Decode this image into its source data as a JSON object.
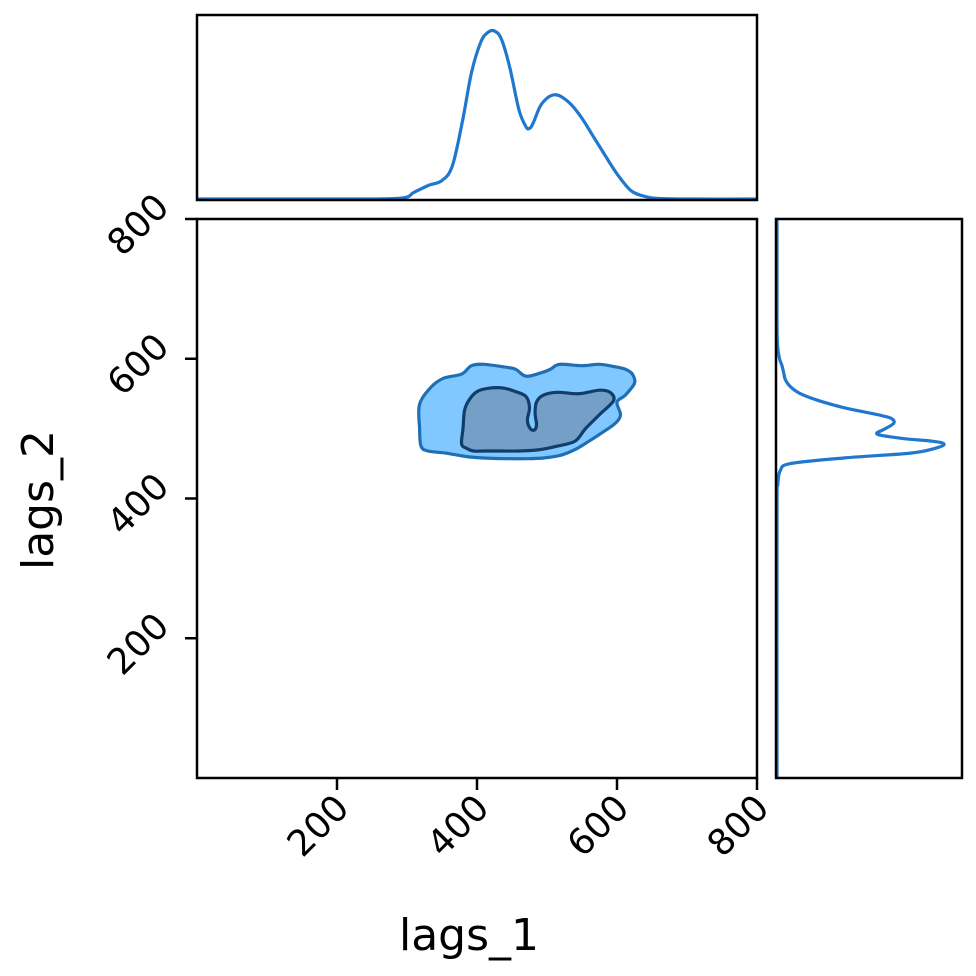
{
  "chart_data": {
    "type": "corner",
    "xlabel": "lags_1",
    "ylabel": "lags_2",
    "xlim": [
      0,
      800
    ],
    "ylim": [
      0,
      800
    ],
    "xticks": [
      {
        "value": 200,
        "label": "200"
      },
      {
        "value": 400,
        "label": "400"
      },
      {
        "value": 600,
        "label": "600"
      },
      {
        "value": 800,
        "label": "800"
      }
    ],
    "yticks": [
      {
        "value": 200,
        "label": "200"
      },
      {
        "value": 400,
        "label": "400"
      },
      {
        "value": 600,
        "label": "600"
      },
      {
        "value": 800,
        "label": "800"
      }
    ],
    "colors": {
      "line": "#1f77d0",
      "outer_fill": "#80c8ff",
      "outer_edge": "#1f6fb4",
      "inner_fill": "#74a0c8",
      "inner_edge": "#123d6a"
    },
    "marginal_x": {
      "x": [
        0,
        100,
        200,
        290,
        310,
        330,
        350,
        365,
        380,
        392,
        405,
        415,
        425,
        435,
        447,
        460,
        470,
        475,
        480,
        490,
        500,
        510,
        520,
        535,
        550,
        565,
        580,
        600,
        620,
        640,
        660,
        700,
        800
      ],
      "density": [
        0.0,
        0.0,
        0.0,
        0.005,
        0.04,
        0.08,
        0.11,
        0.2,
        0.48,
        0.75,
        0.93,
        0.99,
        1.0,
        0.95,
        0.78,
        0.53,
        0.43,
        0.42,
        0.45,
        0.55,
        0.6,
        0.62,
        0.61,
        0.56,
        0.48,
        0.38,
        0.28,
        0.15,
        0.05,
        0.015,
        0.003,
        0.0,
        0.0
      ]
    },
    "marginal_y": {
      "y": [
        0,
        380,
        420,
        440,
        450,
        458,
        465,
        472,
        478,
        482,
        486,
        492,
        500,
        508,
        515,
        520,
        525,
        530,
        540,
        550,
        560,
        570,
        580,
        590,
        600,
        620,
        650,
        700,
        800
      ],
      "density": [
        0.0,
        0.0,
        0.005,
        0.02,
        0.08,
        0.4,
        0.8,
        0.95,
        1.0,
        0.93,
        0.75,
        0.6,
        0.65,
        0.7,
        0.68,
        0.6,
        0.5,
        0.4,
        0.25,
        0.14,
        0.08,
        0.05,
        0.04,
        0.03,
        0.015,
        0.003,
        0.0,
        0.0,
        0.0
      ]
    },
    "contours": [
      {
        "level": "outer",
        "points": [
          [
            320,
            475
          ],
          [
            318,
            500
          ],
          [
            318,
            535
          ],
          [
            335,
            560
          ],
          [
            352,
            572
          ],
          [
            378,
            578
          ],
          [
            392,
            590
          ],
          [
            410,
            592
          ],
          [
            440,
            588
          ],
          [
            455,
            585
          ],
          [
            470,
            575
          ],
          [
            492,
            580
          ],
          [
            505,
            585
          ],
          [
            518,
            592
          ],
          [
            550,
            590
          ],
          [
            575,
            592
          ],
          [
            600,
            588
          ],
          [
            612,
            585
          ],
          [
            622,
            578
          ],
          [
            625,
            565
          ],
          [
            612,
            548
          ],
          [
            600,
            538
          ],
          [
            605,
            520
          ],
          [
            598,
            508
          ],
          [
            580,
            495
          ],
          [
            560,
            482
          ],
          [
            540,
            470
          ],
          [
            520,
            462
          ],
          [
            495,
            458
          ],
          [
            470,
            457
          ],
          [
            443,
            457
          ],
          [
            410,
            458
          ],
          [
            385,
            460
          ],
          [
            355,
            465
          ],
          [
            330,
            468
          ]
        ]
      },
      {
        "level": "inner",
        "points": [
          [
            378,
            478
          ],
          [
            380,
            500
          ],
          [
            382,
            525
          ],
          [
            388,
            540
          ],
          [
            400,
            553
          ],
          [
            418,
            558
          ],
          [
            438,
            558
          ],
          [
            455,
            553
          ],
          [
            470,
            546
          ],
          [
            475,
            530
          ],
          [
            472,
            512
          ],
          [
            476,
            500
          ],
          [
            482,
            498
          ],
          [
            485,
            506
          ],
          [
            483,
            522
          ],
          [
            485,
            538
          ],
          [
            495,
            548
          ],
          [
            515,
            552
          ],
          [
            545,
            550
          ],
          [
            575,
            555
          ],
          [
            590,
            552
          ],
          [
            595,
            540
          ],
          [
            575,
            520
          ],
          [
            555,
            500
          ],
          [
            540,
            482
          ],
          [
            515,
            475
          ],
          [
            490,
            470
          ],
          [
            460,
            468
          ],
          [
            435,
            468
          ],
          [
            410,
            468
          ],
          [
            395,
            468
          ],
          [
            385,
            472
          ]
        ]
      }
    ]
  }
}
